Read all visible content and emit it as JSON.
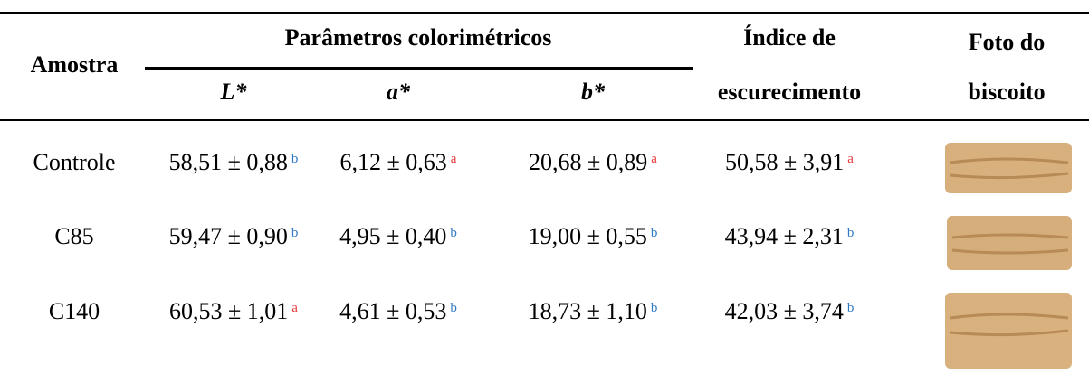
{
  "table": {
    "header": {
      "sample": "Amostra",
      "group": "Parâmetros colorimétricos",
      "columns": [
        "L*",
        "a*",
        "b*"
      ],
      "index": [
        "Índice de",
        "escurecimento"
      ],
      "photo": [
        "Foto do",
        "biscoito"
      ]
    },
    "rows": [
      {
        "sample": "Controle",
        "cells": [
          {
            "value": "58,51 ± 0,88",
            "letter": "b"
          },
          {
            "value": "6,12 ± 0,63",
            "letter": "a"
          },
          {
            "value": "20,68 ± 0,89",
            "letter": "a"
          },
          {
            "value": "50,58 ± 3,91",
            "letter": "a"
          }
        ]
      },
      {
        "sample": "C85",
        "cells": [
          {
            "value": "59,47 ± 0,90",
            "letter": "b"
          },
          {
            "value": "4,95 ± 0,40",
            "letter": "b"
          },
          {
            "value": "19,00 ± 0,55",
            "letter": "b"
          },
          {
            "value": "43,94 ± 2,31",
            "letter": "b"
          }
        ]
      },
      {
        "sample": "C140",
        "cells": [
          {
            "value": "60,53 ± 1,01",
            "letter": "a"
          },
          {
            "value": "4,61 ± 0,53",
            "letter": "b"
          },
          {
            "value": "18,73 ± 1,10",
            "letter": "b"
          },
          {
            "value": "42,03 ± 3,74",
            "letter": "b"
          }
        ]
      }
    ]
  }
}
